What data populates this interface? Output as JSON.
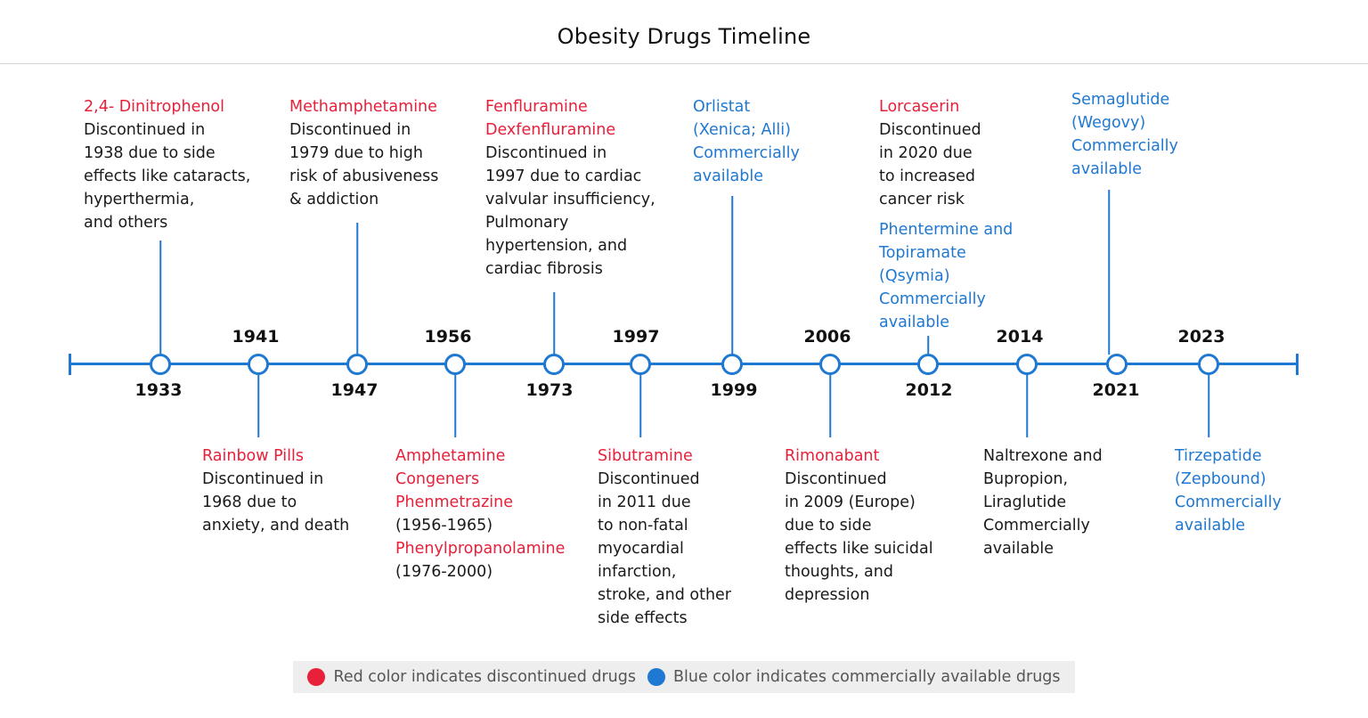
{
  "title": "Obesity Drugs Timeline",
  "colors": {
    "discontinued": "#e8203a",
    "available": "#1f78d1",
    "axis": "#1f78d1"
  },
  "years": [
    "1933",
    "1941",
    "1947",
    "1956",
    "1973",
    "1997",
    "1999",
    "2006",
    "2012",
    "2014",
    "2021",
    "2023"
  ],
  "events": {
    "e1933": {
      "year": "1933",
      "lines": [
        {
          "text": "2,4- Dinitrophenol",
          "tone": "red"
        },
        {
          "text": "Discontinued in",
          "tone": "dark"
        },
        {
          "text": "1938 due to side",
          "tone": "dark"
        },
        {
          "text": "effects like cataracts,",
          "tone": "dark"
        },
        {
          "text": "hyperthermia,",
          "tone": "dark"
        },
        {
          "text": "and others",
          "tone": "dark"
        }
      ]
    },
    "e1941": {
      "year": "1941",
      "lines": [
        {
          "text": "Rainbow Pills",
          "tone": "red"
        },
        {
          "text": "Discontinued in",
          "tone": "dark"
        },
        {
          "text": "1968 due to",
          "tone": "dark"
        },
        {
          "text": "anxiety, and death",
          "tone": "dark"
        }
      ]
    },
    "e1947": {
      "year": "1947",
      "lines": [
        {
          "text": "Methamphetamine",
          "tone": "red"
        },
        {
          "text": "Discontinued in",
          "tone": "dark"
        },
        {
          "text": "1979 due to high",
          "tone": "dark"
        },
        {
          "text": "risk of abusiveness",
          "tone": "dark"
        },
        {
          "text": "& addiction",
          "tone": "dark"
        }
      ]
    },
    "e1956": {
      "year": "1956",
      "lines": [
        {
          "text": "Amphetamine",
          "tone": "red"
        },
        {
          "text": "Congeners",
          "tone": "red"
        },
        {
          "text": "Phenmetrazine",
          "tone": "red"
        },
        {
          "text": "(1956-1965)",
          "tone": "dark"
        },
        {
          "text": "Phenylpropanolamine",
          "tone": "red"
        },
        {
          "text": "(1976-2000)",
          "tone": "dark"
        }
      ]
    },
    "e1973": {
      "year": "1973",
      "lines": [
        {
          "text": "Fenfluramine",
          "tone": "red"
        },
        {
          "text": "Dexfenfluramine",
          "tone": "red"
        },
        {
          "text": "Discontinued in",
          "tone": "dark"
        },
        {
          "text": "1997 due to cardiac",
          "tone": "dark"
        },
        {
          "text": "valvular insufficiency,",
          "tone": "dark"
        },
        {
          "text": "Pulmonary",
          "tone": "dark"
        },
        {
          "text": "hypertension, and",
          "tone": "dark"
        },
        {
          "text": "cardiac fibrosis",
          "tone": "dark"
        }
      ]
    },
    "e1997": {
      "year": "1997",
      "lines": [
        {
          "text": "Sibutramine",
          "tone": "red"
        },
        {
          "text": "Discontinued",
          "tone": "dark"
        },
        {
          "text": "in 2011 due",
          "tone": "dark"
        },
        {
          "text": "to non-fatal",
          "tone": "dark"
        },
        {
          "text": "myocardial",
          "tone": "dark"
        },
        {
          "text": "infarction,",
          "tone": "dark"
        },
        {
          "text": "stroke, and other",
          "tone": "dark"
        },
        {
          "text": "side effects",
          "tone": "dark"
        }
      ]
    },
    "e1999": {
      "year": "1999",
      "lines": [
        {
          "text": "Orlistat",
          "tone": "blue"
        },
        {
          "text": "(Xenica; Alli)",
          "tone": "blue"
        },
        {
          "text": "Commercially",
          "tone": "blue"
        },
        {
          "text": "available",
          "tone": "blue"
        }
      ]
    },
    "e2006": {
      "year": "2006",
      "lines": [
        {
          "text": "Rimonabant",
          "tone": "red"
        },
        {
          "text": "Discontinued",
          "tone": "dark"
        },
        {
          "text": "in 2009 (Europe)",
          "tone": "dark"
        },
        {
          "text": "due to side",
          "tone": "dark"
        },
        {
          "text": "effects like suicidal",
          "tone": "dark"
        },
        {
          "text": "thoughts, and",
          "tone": "dark"
        },
        {
          "text": "depression",
          "tone": "dark"
        }
      ]
    },
    "e2012": {
      "year": "2012",
      "lines": [
        {
          "text": "Lorcaserin",
          "tone": "red"
        },
        {
          "text": "Discontinued",
          "tone": "dark"
        },
        {
          "text": "in 2020 due",
          "tone": "dark"
        },
        {
          "text": "to increased",
          "tone": "dark"
        },
        {
          "text": "cancer risk",
          "tone": "dark"
        },
        {
          "text": "",
          "tone": "gap"
        },
        {
          "text": "Phentermine and",
          "tone": "blue"
        },
        {
          "text": "Topiramate",
          "tone": "blue"
        },
        {
          "text": "(Qsymia)",
          "tone": "blue"
        },
        {
          "text": "Commercially",
          "tone": "blue"
        },
        {
          "text": "available",
          "tone": "blue"
        }
      ]
    },
    "e2014": {
      "year": "2014",
      "lines": [
        {
          "text": "Naltrexone and",
          "tone": "dark"
        },
        {
          "text": "Bupropion,",
          "tone": "dark"
        },
        {
          "text": "Liraglutide",
          "tone": "dark"
        },
        {
          "text": "Commercially",
          "tone": "dark"
        },
        {
          "text": "available",
          "tone": "dark"
        }
      ]
    },
    "e2021": {
      "year": "2021",
      "lines": [
        {
          "text": "Semaglutide",
          "tone": "blue"
        },
        {
          "text": "(Wegovy)",
          "tone": "blue"
        },
        {
          "text": "Commercially",
          "tone": "blue"
        },
        {
          "text": "available",
          "tone": "blue"
        }
      ]
    },
    "e2023": {
      "year": "2023",
      "lines": [
        {
          "text": "Tirzepatide",
          "tone": "blue"
        },
        {
          "text": "(Zepbound)",
          "tone": "blue"
        },
        {
          "text": "Commercially",
          "tone": "blue"
        },
        {
          "text": "available",
          "tone": "blue"
        }
      ]
    }
  },
  "legend": {
    "red_label": "Red color indicates discontinued drugs",
    "blue_label": "Blue color indicates commercially available drugs"
  }
}
